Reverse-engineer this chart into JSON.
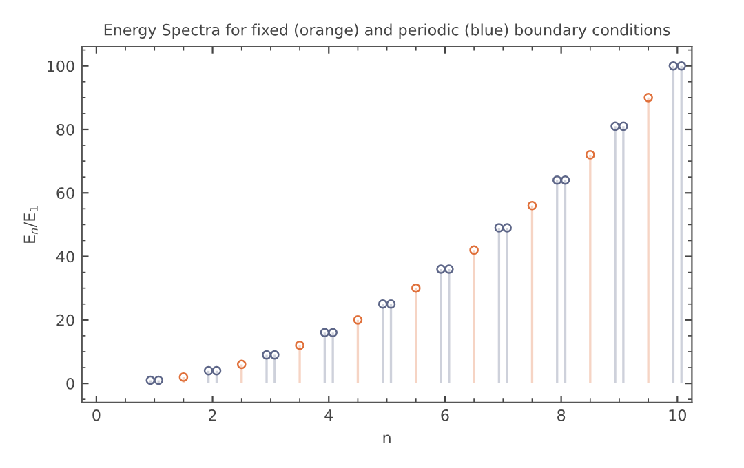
{
  "chart_data": {
    "type": "lollipop",
    "title": "Energy Spectra for fixed (orange) and periodic (blue) boundary conditions",
    "xlabel": "n",
    "ylabel": "E$_{n}$/E$_{1}$",
    "series": [
      {
        "color": "#e0703a",
        "x": [
          1.5,
          2.5,
          3.5,
          4.5,
          5.5,
          6.5,
          7.5,
          8.5,
          9.5
        ],
        "values": [
          2,
          6,
          12,
          20,
          30,
          42,
          56,
          72,
          90
        ]
      },
      {
        "color": "#5d6688",
        "x": [
          0.93,
          1.07,
          1.93,
          2.07,
          2.93,
          3.07,
          3.93,
          4.07,
          4.93,
          5.07,
          5.93,
          6.07,
          6.93,
          7.07,
          7.93,
          8.07,
          8.93,
          9.07,
          9.93,
          10.07
        ],
        "values": [
          1,
          1,
          4,
          4,
          9,
          9,
          16,
          16,
          25,
          25,
          36,
          36,
          49,
          49,
          64,
          64,
          81,
          81,
          100,
          100
        ]
      }
    ],
    "xlim": [
      -0.25,
      10.25
    ],
    "xticks": [
      0,
      2,
      4,
      6,
      8,
      10
    ],
    "ylim": [
      -6,
      106
    ],
    "yticks": [
      0,
      20,
      40,
      60,
      80,
      100
    ],
    "marker": "circle",
    "grid": false
  }
}
